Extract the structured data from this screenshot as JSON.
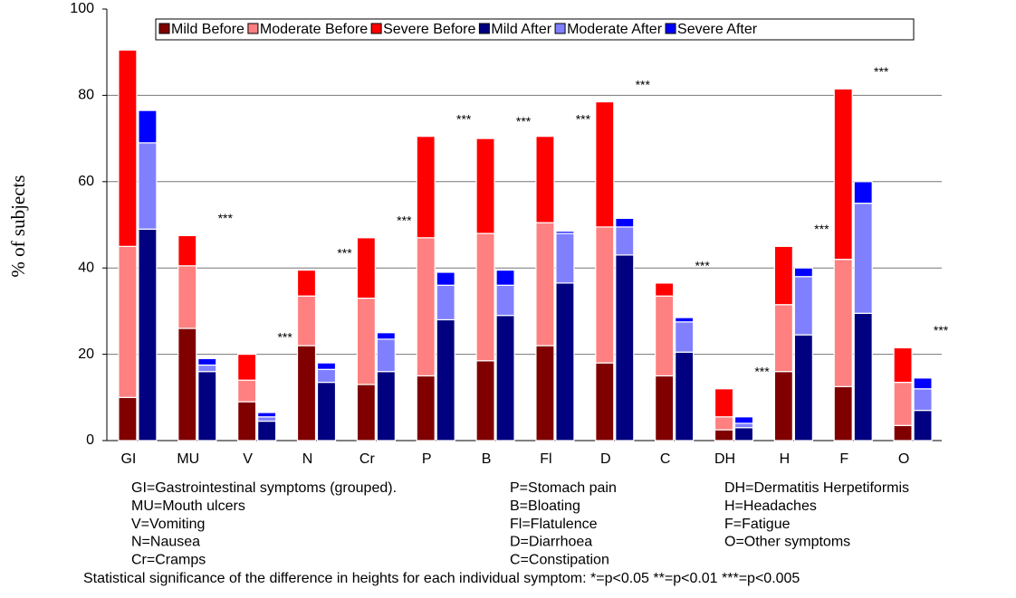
{
  "chart_data": {
    "type": "stacked-bar-pairs",
    "y_label": "% of subjects",
    "categories": [
      "GI",
      "MU",
      "V",
      "N",
      "Cr",
      "P",
      "B",
      "Fl",
      "D",
      "C",
      "DH",
      "H",
      "F",
      "O"
    ],
    "series": [
      {
        "name": "Mild Before",
        "color": "#800000",
        "stack": "before",
        "values": [
          10,
          26,
          9,
          22,
          13,
          15,
          18.5,
          22,
          18,
          15,
          2.5,
          16,
          12.5,
          3.5
        ]
      },
      {
        "name": "Moderate Before",
        "color": "#ff8080",
        "stack": "before",
        "values": [
          35,
          14.5,
          5,
          11.5,
          20,
          32,
          29.5,
          28.5,
          31.5,
          18.5,
          3,
          15.5,
          29.5,
          10
        ]
      },
      {
        "name": "Severe Before",
        "color": "#ff0000",
        "stack": "before",
        "values": [
          45.5,
          7,
          6,
          6,
          14,
          23.5,
          22,
          20,
          29,
          3,
          6.5,
          13.5,
          39.5,
          8
        ]
      },
      {
        "name": "Mild After",
        "color": "#000080",
        "stack": "after",
        "values": [
          49,
          16,
          4.5,
          13.5,
          16,
          28,
          29,
          36.5,
          43,
          20.5,
          3,
          24.5,
          29.5,
          7
        ]
      },
      {
        "name": "Moderate After",
        "color": "#8080ff",
        "stack": "after",
        "values": [
          20,
          1.5,
          1,
          3,
          7.5,
          8,
          7,
          11.5,
          6.5,
          7,
          1,
          13.5,
          25.5,
          5
        ]
      },
      {
        "name": "Severe After",
        "color": "#0000ff",
        "stack": "after",
        "values": [
          7.5,
          1.5,
          1,
          1.5,
          1.5,
          3,
          3.5,
          0.5,
          2,
          1,
          1.5,
          2,
          5,
          2.5
        ]
      }
    ],
    "significance": [
      null,
      "***",
      "***",
      "***",
      "***",
      "***",
      "***",
      "***",
      "***",
      "***",
      "***",
      "***",
      "***",
      "***"
    ],
    "ylim": [
      0,
      100
    ],
    "yticks": [
      0,
      20,
      40,
      60,
      80,
      100
    ],
    "grid": true,
    "notes": [
      [
        "GI=Gastrointestinal symptoms (grouped).",
        "MU=Mouth ulcers",
        "V=Vomiting",
        "N=Nausea",
        "Cr=Cramps"
      ],
      [
        "P=Stomach pain",
        "B=Bloating",
        "Fl=Flatulence",
        "D=Diarrhoea",
        "C=Constipation"
      ],
      [
        "DH=Dermatitis Herpetiformis",
        "H=Headaches",
        "F=Fatigue",
        "O=Other symptoms"
      ]
    ],
    "footnote": "Statistical significance of the difference in heights for each individual symptom: *=p<0.05 **=p<0.01 ***=p<0.005"
  }
}
